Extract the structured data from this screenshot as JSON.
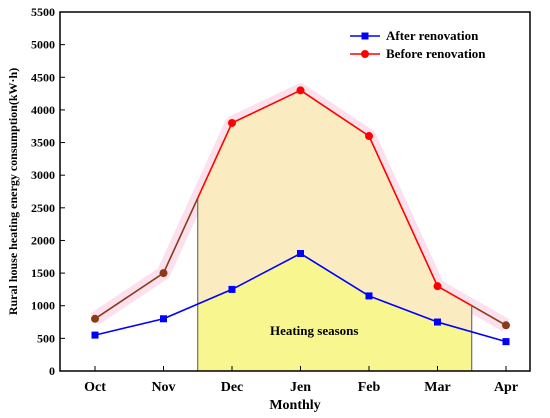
{
  "chart_data": {
    "type": "line",
    "xlabel": "Monthly",
    "ylabel": "Rural house heating energy consumption(kW·h)",
    "categories": [
      "Oct",
      "Nov",
      "Dec",
      "Jen",
      "Feb",
      "Mar",
      "Apr"
    ],
    "ylim": [
      0,
      5500
    ],
    "yticks": [
      0,
      500,
      1000,
      1500,
      2000,
      2500,
      3000,
      3500,
      4000,
      4500,
      5000,
      5500
    ],
    "series": [
      {
        "name": "After renovation",
        "values": [
          550,
          800,
          1250,
          1800,
          1150,
          750,
          450
        ],
        "color": "#0000ff",
        "marker": "square"
      },
      {
        "name": "Before renovation",
        "values": [
          800,
          1500,
          3800,
          4300,
          3600,
          1300,
          700
        ],
        "color": "#ff0000",
        "marker": "circle"
      }
    ],
    "non_heating_segment_color": "#8b3a1a",
    "heating_season": {
      "label": "Heating seasons",
      "start_index": 1.5,
      "end_index": 5.5
    },
    "fill_colors": {
      "between": "#faebc0",
      "below": "#f8f78f",
      "edge_glow": "#f8c8e0"
    },
    "legend": "top-right",
    "grid": false
  }
}
